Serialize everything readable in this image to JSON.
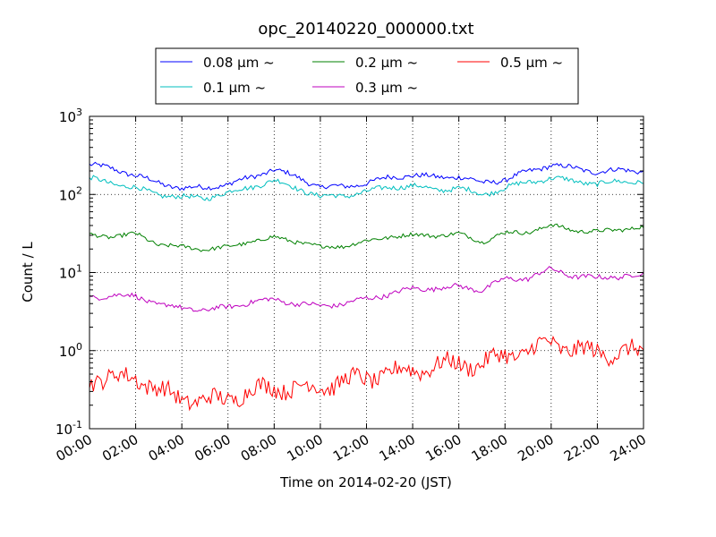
{
  "chart_data": {
    "type": "line",
    "title": "opc_20140220_000000.txt",
    "xlabel": "Time on 2014-02-20 (JST)",
    "ylabel": "Count / L",
    "x_scale": "time",
    "y_scale": "log",
    "xlim": [
      "00:00",
      "24:00"
    ],
    "ylim": [
      0.1,
      1000
    ],
    "grid": true,
    "legend_position": "top",
    "x_ticks": [
      "00:00",
      "02:00",
      "04:00",
      "06:00",
      "08:00",
      "10:00",
      "12:00",
      "14:00",
      "16:00",
      "18:00",
      "20:00",
      "22:00",
      "24:00"
    ],
    "y_ticks": [
      {
        "value": 0.1,
        "base": "10",
        "exp": "-1"
      },
      {
        "value": 1,
        "base": "10",
        "exp": "0"
      },
      {
        "value": 10,
        "base": "10",
        "exp": "1"
      },
      {
        "value": 100,
        "base": "10",
        "exp": "2"
      },
      {
        "value": 1000,
        "base": "10",
        "exp": "3"
      }
    ],
    "x": [
      "00:00",
      "01:00",
      "02:00",
      "03:00",
      "04:00",
      "05:00",
      "06:00",
      "07:00",
      "08:00",
      "09:00",
      "10:00",
      "11:00",
      "12:00",
      "13:00",
      "14:00",
      "15:00",
      "16:00",
      "17:00",
      "18:00",
      "19:00",
      "20:00",
      "21:00",
      "22:00",
      "23:00",
      "24:00"
    ],
    "series": [
      {
        "name": "0.08 μm ~",
        "color": "#0000ff",
        "noise": 0.03,
        "values": [
          240,
          215,
          175,
          140,
          120,
          122,
          135,
          165,
          210,
          165,
          125,
          125,
          140,
          165,
          178,
          165,
          170,
          140,
          155,
          195,
          240,
          215,
          195,
          205,
          200
        ]
      },
      {
        "name": "0.1 μm ~",
        "color": "#00bfbf",
        "noise": 0.03,
        "values": [
          160,
          140,
          120,
          100,
          92,
          90,
          105,
          125,
          150,
          120,
          94,
          96,
          108,
          125,
          128,
          115,
          120,
          100,
          120,
          145,
          160,
          150,
          135,
          148,
          145
        ]
      },
      {
        "name": "0.2 μm ~",
        "color": "#008000",
        "noise": 0.025,
        "values": [
          30,
          29,
          31,
          23,
          21,
          20,
          21,
          25,
          28,
          25,
          21,
          22,
          25,
          29,
          30,
          30,
          31,
          25,
          32,
          33,
          40,
          35,
          33,
          36,
          38
        ]
      },
      {
        "name": "0.3 μm ~",
        "color": "#bf00bf",
        "noise": 0.03,
        "values": [
          4.8,
          5.1,
          5.0,
          3.9,
          3.5,
          3.3,
          3.6,
          4.2,
          4.5,
          4.0,
          3.7,
          4.0,
          4.6,
          5.3,
          6.2,
          6.3,
          6.6,
          6.0,
          8.2,
          8.5,
          11.0,
          9.0,
          8.5,
          9.0,
          9.2
        ]
      },
      {
        "name": "0.5 μm ~",
        "color": "#ff0000",
        "noise": 0.11,
        "values": [
          0.45,
          0.43,
          0.48,
          0.3,
          0.25,
          0.22,
          0.25,
          0.3,
          0.35,
          0.32,
          0.35,
          0.4,
          0.45,
          0.5,
          0.58,
          0.62,
          0.7,
          0.65,
          0.9,
          0.95,
          1.3,
          1.0,
          0.95,
          0.95,
          0.95
        ]
      }
    ]
  }
}
